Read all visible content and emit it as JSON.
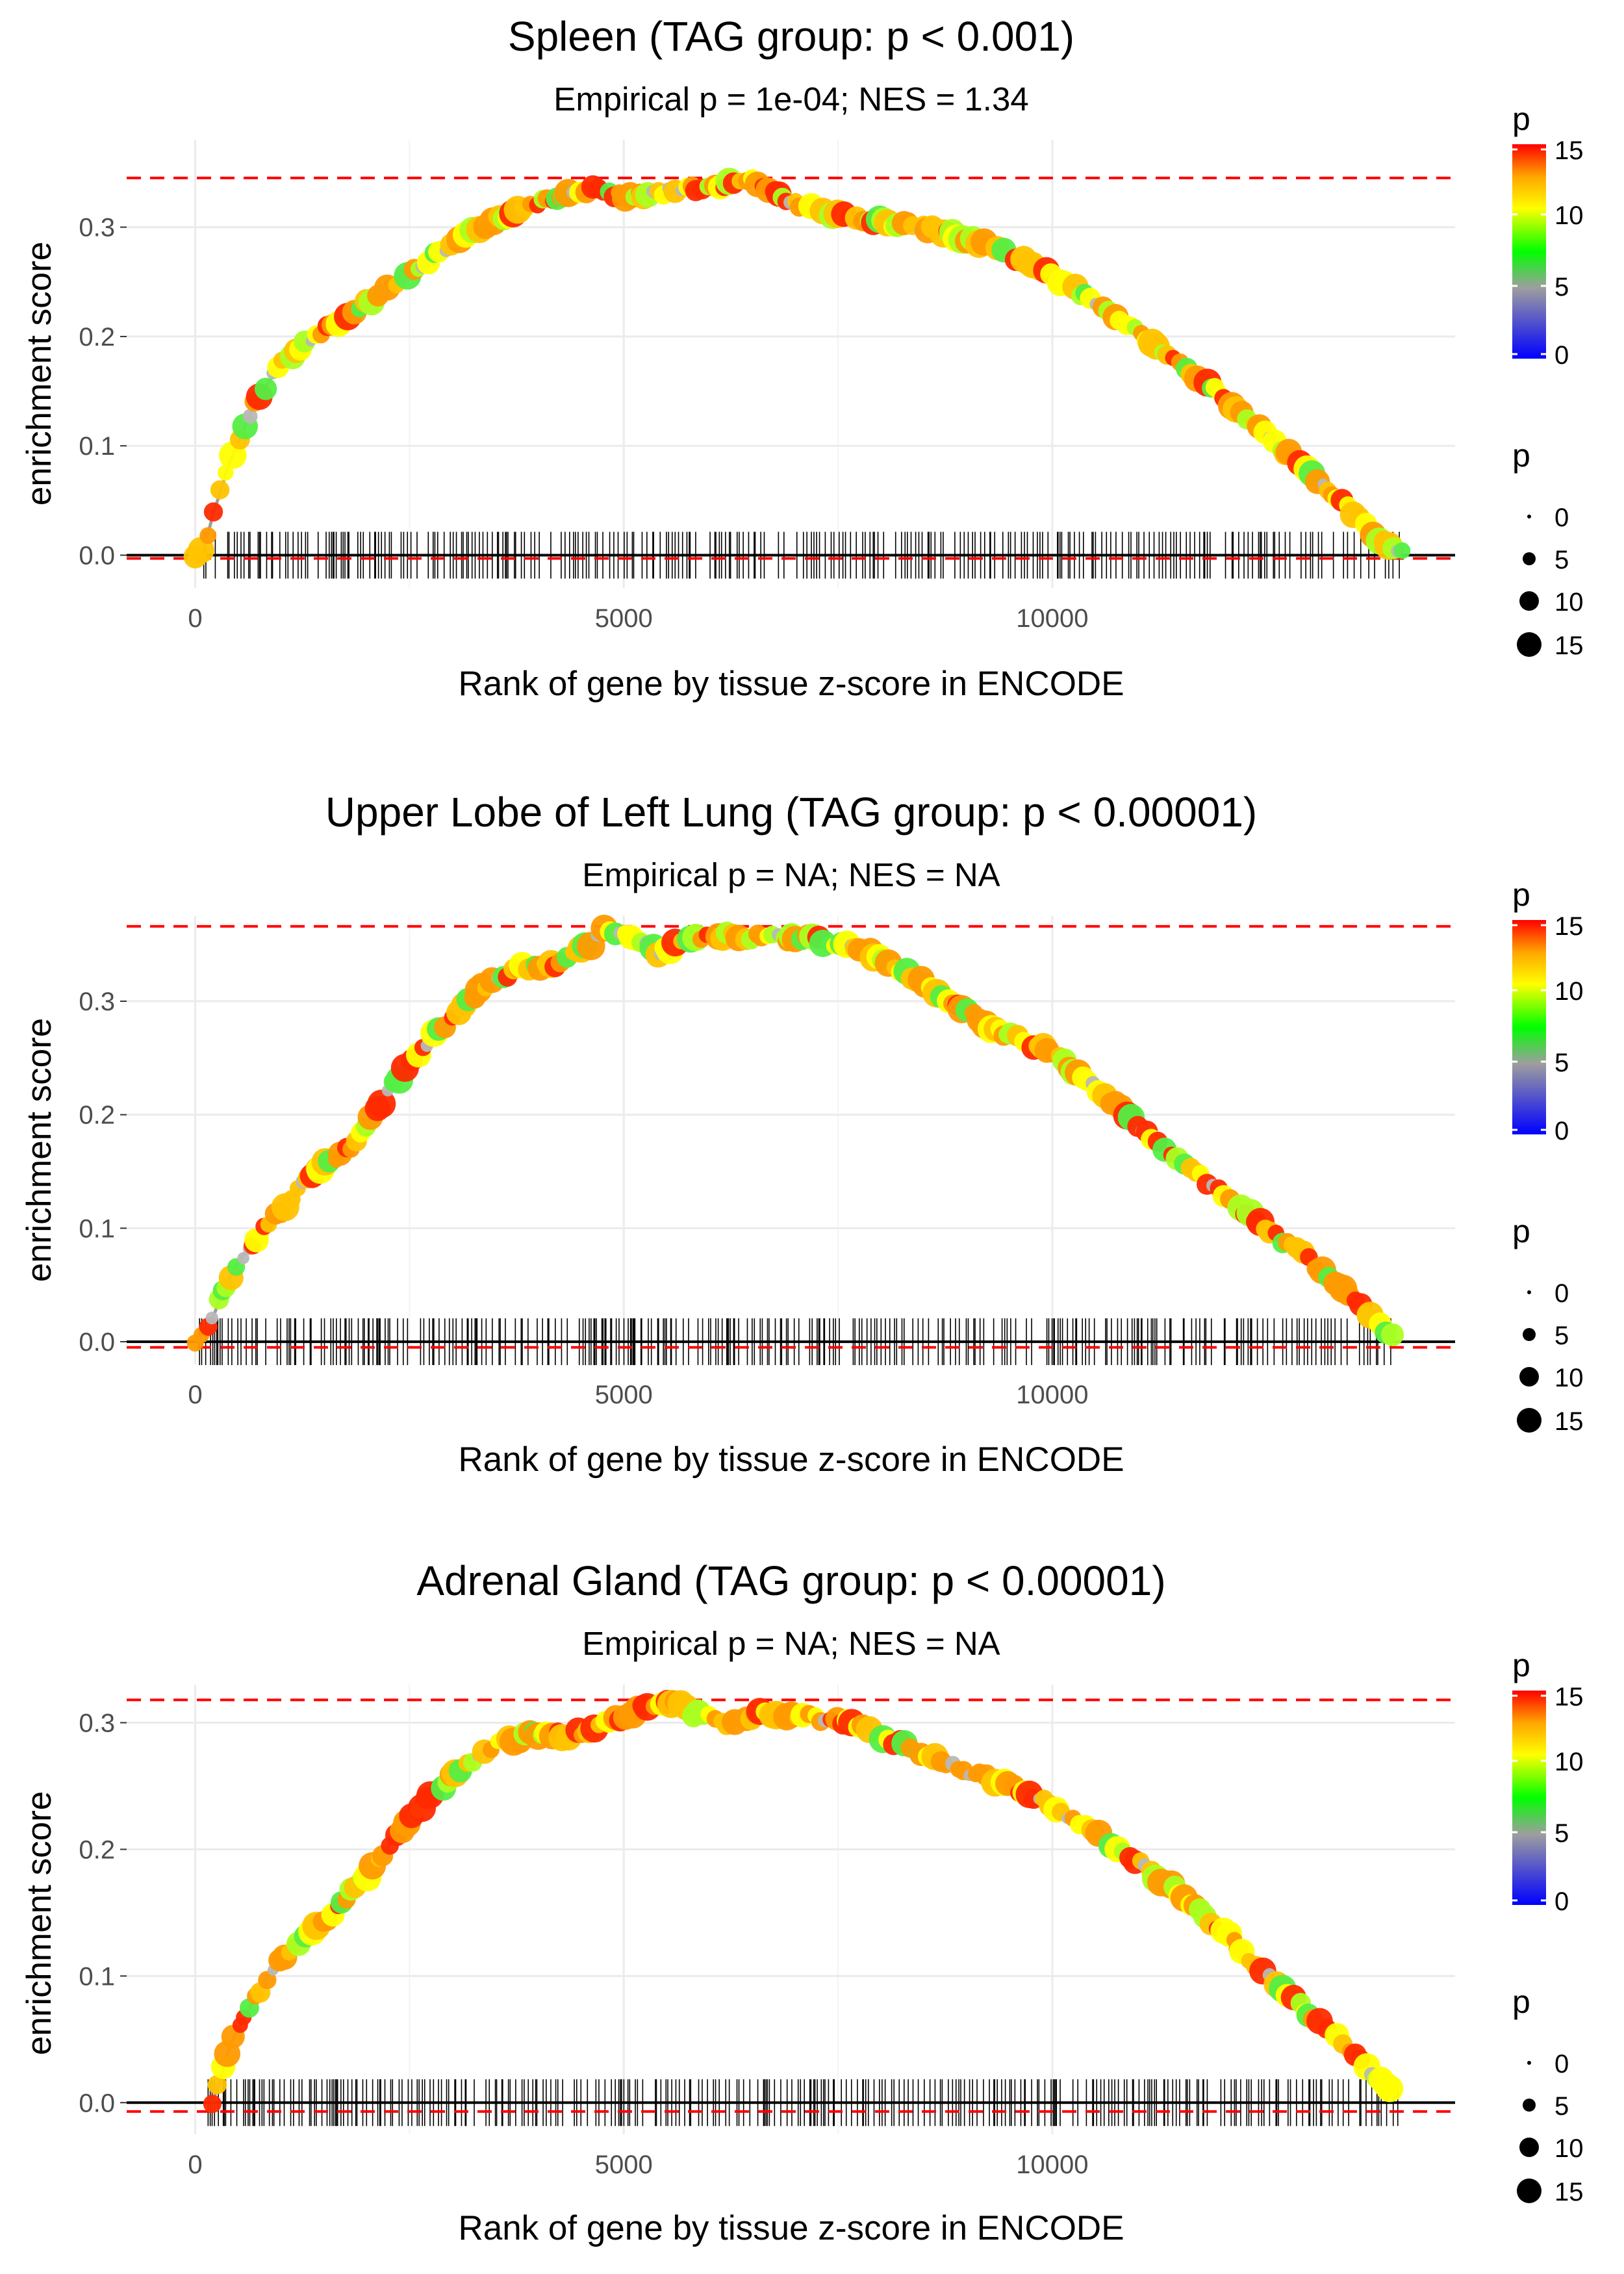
{
  "chart_data": [
    {
      "type": "line",
      "title": "Spleen (TAG group: p < 0.001)",
      "subtitle": "Empirical p = 1e-04; NES = 1.34",
      "xlabel": "Rank of gene by tissue z-score in ENCODE",
      "ylabel": "enrichment score",
      "xlim": [
        -800,
        14700
      ],
      "ylim": [
        -0.03,
        0.38
      ],
      "x_ticks": [
        0,
        5000,
        10000
      ],
      "x_tick_labels": [
        "0",
        "5000",
        "10000"
      ],
      "y_ticks": [
        0,
        0.1,
        0.2,
        0.3
      ],
      "y_tick_labels": [
        "0.0",
        "0.1",
        "0.2",
        "0.3"
      ],
      "max_es_line": 0.345,
      "min_es_line": -0.003,
      "rug": {
        "start": 100,
        "end": 14100,
        "seed": 11
      },
      "curve_x": [
        0,
        100,
        200,
        400,
        700,
        1000,
        1300,
        1700,
        2200,
        2800,
        3300,
        3800,
        4300,
        4700,
        5000,
        5300,
        5700,
        6100,
        6500,
        7000,
        7500,
        8000,
        8500,
        9000,
        9500,
        10000,
        10500,
        11000,
        11500,
        12000,
        12500,
        13000,
        13500,
        13800,
        14100
      ],
      "curve_y": [
        0,
        0.005,
        0.035,
        0.085,
        0.14,
        0.175,
        0.195,
        0.215,
        0.24,
        0.275,
        0.3,
        0.315,
        0.33,
        0.335,
        0.328,
        0.33,
        0.335,
        0.338,
        0.342,
        0.322,
        0.31,
        0.305,
        0.3,
        0.29,
        0.275,
        0.255,
        0.232,
        0.205,
        0.175,
        0.145,
        0.11,
        0.075,
        0.04,
        0.015,
        0.002
      ],
      "legend_color": {
        "title": "p",
        "breaks": [
          "15",
          "10",
          "5",
          "0"
        ]
      },
      "legend_size": {
        "title": "p",
        "breaks": [
          "0",
          "5",
          "10",
          "15"
        ]
      }
    },
    {
      "type": "line",
      "title": "Upper Lobe of Left Lung (TAG group: p < 0.00001)",
      "subtitle": "Empirical p = NA; NES = NA",
      "xlabel": "Rank of gene by tissue z-score in ENCODE",
      "ylabel": "enrichment score",
      "xlim": [
        -800,
        14700
      ],
      "ylim": [
        -0.02,
        0.375
      ],
      "x_ticks": [
        0,
        5000,
        10000
      ],
      "x_tick_labels": [
        "0",
        "5000",
        "10000"
      ],
      "y_ticks": [
        0,
        0.1,
        0.2,
        0.3
      ],
      "y_tick_labels": [
        "0.0",
        "0.1",
        "0.2",
        "0.3"
      ],
      "max_es_line": 0.366,
      "min_es_line": -0.005,
      "rug": {
        "start": 50,
        "end": 14000,
        "seed": 23
      },
      "curve_x": [
        0,
        150,
        300,
        500,
        800,
        1100,
        1400,
        1800,
        2200,
        2600,
        3000,
        3400,
        3800,
        4200,
        4600,
        4800,
        5100,
        5400,
        5800,
        6200,
        6700,
        7200,
        7600,
        8000,
        8500,
        9000,
        9500,
        10000,
        10500,
        11000,
        11500,
        12000,
        12500,
        13000,
        13500,
        13800,
        14000
      ],
      "curve_y": [
        0,
        0.01,
        0.04,
        0.07,
        0.1,
        0.125,
        0.15,
        0.17,
        0.215,
        0.255,
        0.285,
        0.315,
        0.33,
        0.33,
        0.35,
        0.365,
        0.355,
        0.343,
        0.355,
        0.358,
        0.356,
        0.355,
        0.35,
        0.338,
        0.315,
        0.29,
        0.27,
        0.255,
        0.225,
        0.19,
        0.16,
        0.13,
        0.1,
        0.072,
        0.038,
        0.015,
        0.002
      ],
      "legend_color": {
        "title": "p",
        "breaks": [
          "15",
          "10",
          "5",
          "0"
        ]
      },
      "legend_size": {
        "title": "p",
        "breaks": [
          "0",
          "5",
          "10",
          "15"
        ]
      }
    },
    {
      "type": "line",
      "title": "Adrenal Gland (TAG group: p < 0.00001)",
      "subtitle": "Empirical p = NA; NES = NA",
      "xlabel": "Rank of gene by tissue z-score in ENCODE",
      "ylabel": "enrichment score",
      "xlim": [
        -800,
        14700
      ],
      "ylim": [
        -0.025,
        0.33
      ],
      "x_ticks": [
        0,
        5000,
        10000
      ],
      "x_tick_labels": [
        "0",
        "5000",
        "10000"
      ],
      "y_ticks": [
        0,
        0.1,
        0.2,
        0.3
      ],
      "y_tick_labels": [
        "0.0",
        "0.1",
        "0.2",
        "0.3"
      ],
      "max_es_line": 0.318,
      "min_es_line": -0.007,
      "rug": {
        "start": 150,
        "end": 14050,
        "seed": 37
      },
      "curve_x": [
        200,
        300,
        400,
        600,
        800,
        1000,
        1300,
        1600,
        2000,
        2400,
        2800,
        3200,
        3600,
        4000,
        4400,
        4800,
        5200,
        5500,
        5800,
        6200,
        6700,
        7200,
        7600,
        8000,
        8500,
        9000,
        9500,
        10000,
        10500,
        11000,
        11500,
        12000,
        12500,
        13000,
        13500,
        13800,
        14000
      ],
      "curve_y": [
        0,
        0.02,
        0.045,
        0.07,
        0.095,
        0.115,
        0.13,
        0.15,
        0.18,
        0.215,
        0.245,
        0.27,
        0.285,
        0.292,
        0.29,
        0.3,
        0.31,
        0.318,
        0.308,
        0.3,
        0.308,
        0.305,
        0.3,
        0.29,
        0.275,
        0.262,
        0.25,
        0.235,
        0.212,
        0.19,
        0.165,
        0.135,
        0.1,
        0.07,
        0.04,
        0.018,
        0.004
      ],
      "legend_color": {
        "title": "p",
        "breaks": [
          "15",
          "10",
          "5",
          "0"
        ]
      },
      "legend_size": {
        "title": "p",
        "breaks": [
          "0",
          "5",
          "10",
          "15"
        ]
      }
    }
  ]
}
